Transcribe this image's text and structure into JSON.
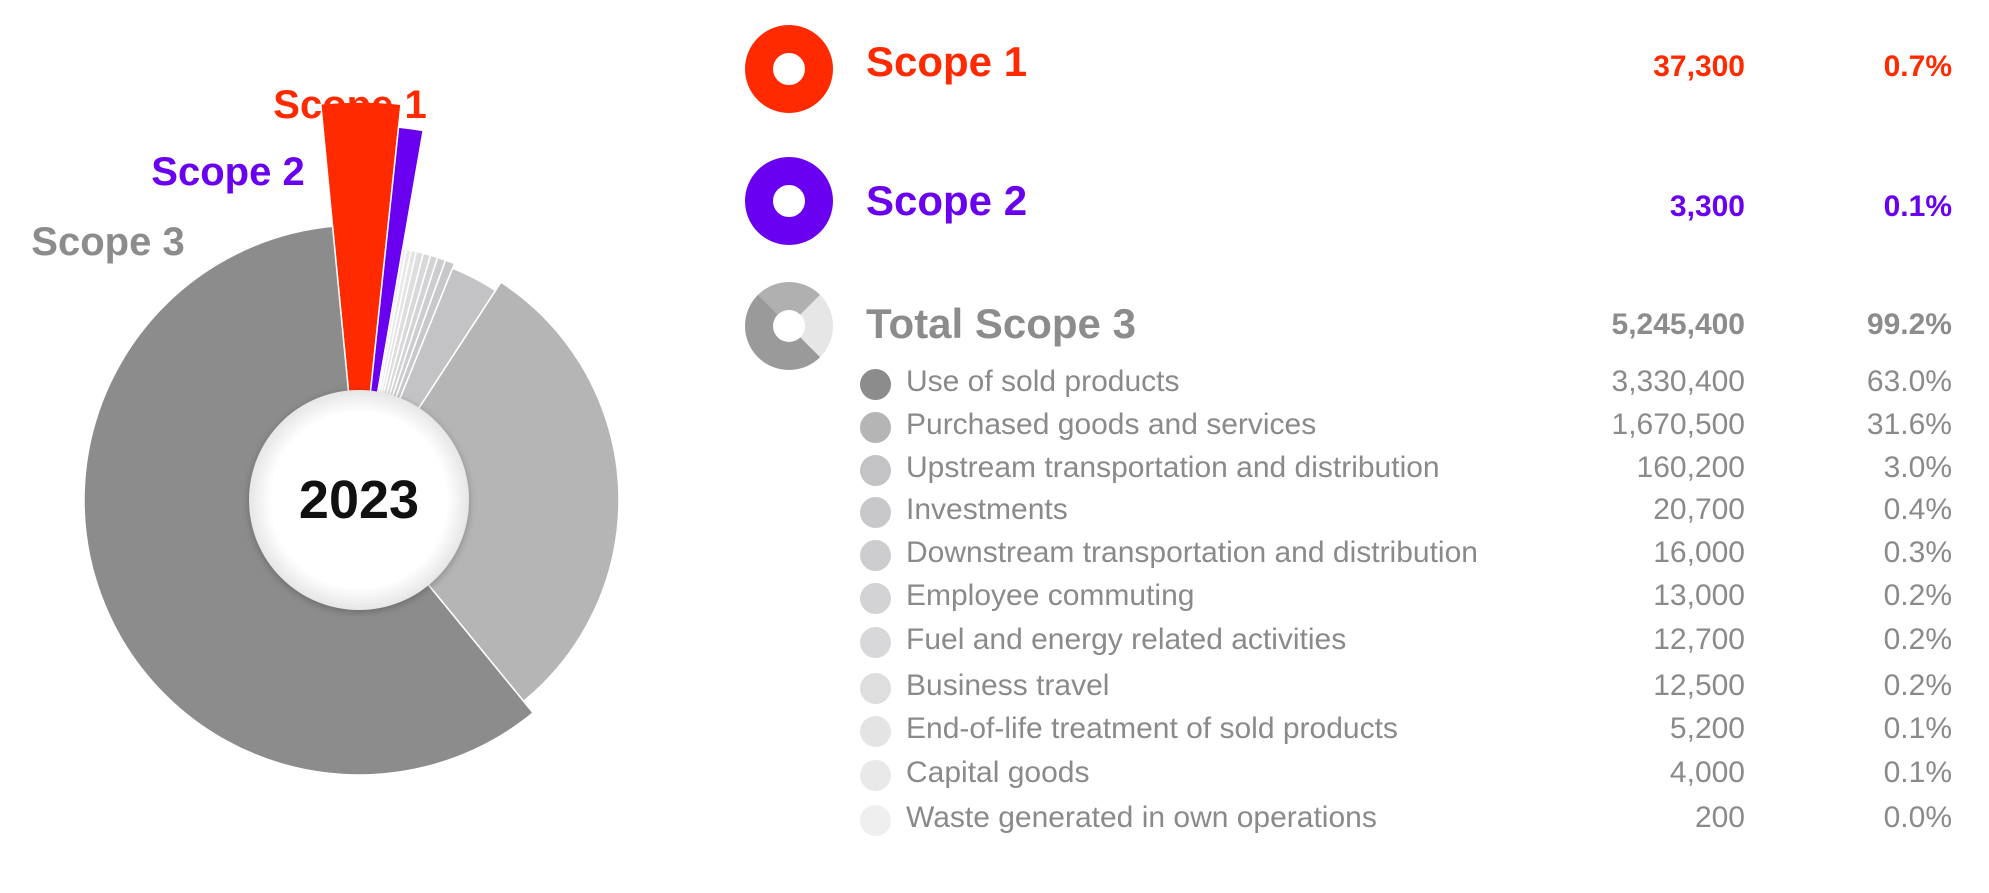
{
  "chart_data": {
    "type": "pie",
    "center_label": "2023",
    "outer_labels": {
      "scope1": "Scope 1",
      "scope2": "Scope 2",
      "scope3": "Scope 3"
    },
    "scopes": [
      {
        "name": "Scope 1",
        "value": "37,300",
        "percent": "0.7%",
        "v": 37300,
        "color": "#ff2a00"
      },
      {
        "name": "Scope 2",
        "value": "3,300",
        "percent": "0.1%",
        "v": 3300,
        "color": "#6a00f0"
      },
      {
        "name": "Total Scope 3",
        "value": "5,245,400",
        "percent": "99.2%",
        "v": 5245400,
        "color": "#8c8c8c"
      }
    ],
    "scope3_categories": [
      {
        "name": "Use of sold products",
        "value": "3,330,400",
        "percent": "63.0%",
        "v": 3330400,
        "color": "#8c8c8c"
      },
      {
        "name": "Purchased goods and services",
        "value": "1,670,500",
        "percent": "31.6%",
        "v": 1670500,
        "color": "#b5b5b5"
      },
      {
        "name": "Upstream transportation and distribution",
        "value": "160,200",
        "percent": "3.0%",
        "v": 160200,
        "color": "#c3c3c6"
      },
      {
        "name": "Investments",
        "value": "20,700",
        "percent": "0.4%",
        "v": 20700,
        "color": "#c8c8cb"
      },
      {
        "name": "Downstream transportation and distribution",
        "value": "16,000",
        "percent": "0.3%",
        "v": 16000,
        "color": "#cdcdd0"
      },
      {
        "name": "Employee commuting",
        "value": "13,000",
        "percent": "0.2%",
        "v": 13000,
        "color": "#d3d3d6"
      },
      {
        "name": "Fuel and energy related activities",
        "value": "12,700",
        "percent": "0.2%",
        "v": 12700,
        "color": "#d8d8db"
      },
      {
        "name": "Business travel",
        "value": "12,500",
        "percent": "0.2%",
        "v": 12500,
        "color": "#dededf"
      },
      {
        "name": "End-of-life treatment of sold products",
        "value": "5,200",
        "percent": "0.1%",
        "v": 5200,
        "color": "#e4e4e5"
      },
      {
        "name": "Capital goods",
        "value": "4,000",
        "percent": "0.1%",
        "v": 4000,
        "color": "#e9e9ea"
      },
      {
        "name": "Waste generated in own operations",
        "value": "200",
        "percent": "0.0%",
        "v": 200,
        "color": "#efefef"
      }
    ]
  }
}
